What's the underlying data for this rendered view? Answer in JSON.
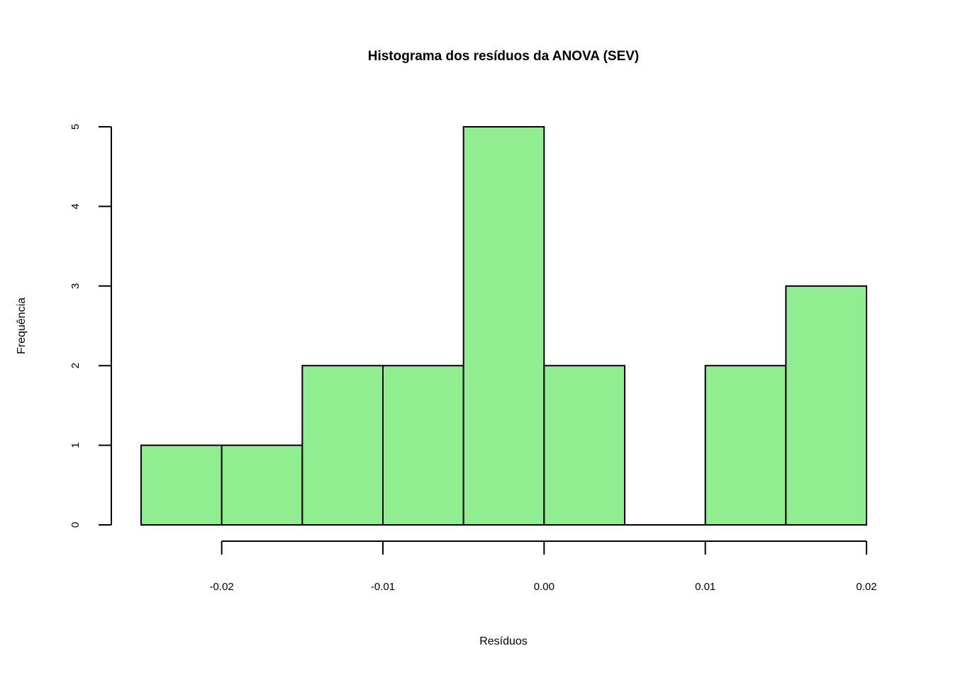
{
  "chart_data": {
    "type": "bar",
    "title": "Histograma dos resíduos da ANOVA (SEV)",
    "xlabel": "Resíduos",
    "ylabel": "Frequência",
    "bins": [
      {
        "start": -0.025,
        "end": -0.02,
        "count": 1
      },
      {
        "start": -0.02,
        "end": -0.015,
        "count": 1
      },
      {
        "start": -0.015,
        "end": -0.01,
        "count": 2
      },
      {
        "start": -0.01,
        "end": -0.005,
        "count": 2
      },
      {
        "start": -0.005,
        "end": 0.0,
        "count": 5
      },
      {
        "start": 0.0,
        "end": 0.005,
        "count": 2
      },
      {
        "start": 0.005,
        "end": 0.01,
        "count": 0
      },
      {
        "start": 0.01,
        "end": 0.015,
        "count": 2
      },
      {
        "start": 0.015,
        "end": 0.02,
        "count": 3
      }
    ],
    "xticks": [
      -0.02,
      -0.01,
      0.0,
      0.01,
      0.02
    ],
    "xtick_labels": [
      "-0.02",
      "-0.01",
      "0.00",
      "0.01",
      "0.02"
    ],
    "yticks": [
      0,
      1,
      2,
      3,
      4,
      5
    ],
    "ytick_labels": [
      "0",
      "1",
      "2",
      "3",
      "4",
      "5"
    ],
    "xlim": [
      -0.025,
      0.02
    ],
    "ylim": [
      0,
      5
    ],
    "grid": false,
    "legend": "none",
    "bar_color": "#90ee90",
    "edge_color": "#000000"
  }
}
